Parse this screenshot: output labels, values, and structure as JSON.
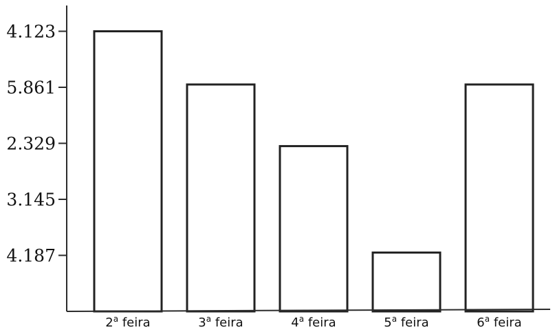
{
  "chart_data": {
    "type": "bar",
    "categories": [
      {
        "num": "2",
        "ord": "a",
        "word": "feira"
      },
      {
        "num": "3",
        "ord": "a",
        "word": "feira"
      },
      {
        "num": "4",
        "ord": "a",
        "word": "feira"
      },
      {
        "num": "5",
        "ord": "a",
        "word": "feira"
      },
      {
        "num": "6",
        "ord": "a",
        "word": "feira"
      }
    ],
    "values": [
      5,
      4.05,
      2.95,
      1.05,
      4.05
    ],
    "yticks": [
      {
        "value": 5,
        "label": "4.123"
      },
      {
        "value": 4,
        "label": "5.861"
      },
      {
        "value": 3,
        "label": "2.329"
      },
      {
        "value": 2,
        "label": "3.145"
      },
      {
        "value": 1,
        "label": "4.187"
      }
    ],
    "ylim": [
      0,
      5.3
    ],
    "title": "",
    "xlabel": "",
    "ylabel": "",
    "grid": false,
    "legend": "none",
    "colors": {
      "bar_fill": "#ffffff",
      "bar_stroke": "#222222",
      "axis": "#2b2b2b"
    }
  }
}
